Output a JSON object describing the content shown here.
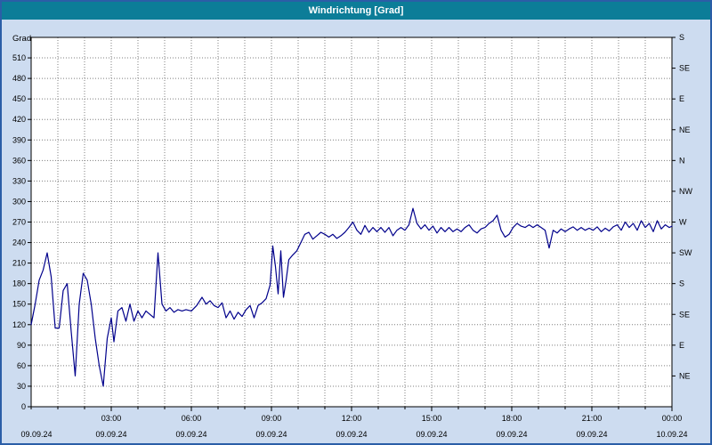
{
  "window": {
    "title": "Windrichtung [Grad]"
  },
  "colors": {
    "titlebar": "#0c7d98",
    "title_text": "#ffffff",
    "panel_bg": "#cddcf0",
    "plot_bg": "#ffffff",
    "grid": "#7f7f7f",
    "axis": "#000000",
    "line": "#00008b",
    "frame_border": "#2b5ea7"
  },
  "chart_data": {
    "type": "line",
    "title": "Windrichtung [Grad]",
    "ylabel_left": "Grad",
    "ylim": [
      0,
      540
    ],
    "xlim_hours": [
      0,
      24
    ],
    "grid": "dotted, vertical every hour, horizontal every 30 degrees",
    "legend_position": "none",
    "y_left_ticks": [
      0,
      30,
      60,
      90,
      120,
      150,
      180,
      210,
      240,
      270,
      300,
      330,
      360,
      390,
      420,
      450,
      480,
      510
    ],
    "y_right_ticks": [
      {
        "deg": 540,
        "label": "S"
      },
      {
        "deg": 495,
        "label": "SE"
      },
      {
        "deg": 450,
        "label": "E"
      },
      {
        "deg": 405,
        "label": "NE"
      },
      {
        "deg": 360,
        "label": "N"
      },
      {
        "deg": 315,
        "label": "NW"
      },
      {
        "deg": 270,
        "label": "W"
      },
      {
        "deg": 225,
        "label": "SW"
      },
      {
        "deg": 180,
        "label": "S"
      },
      {
        "deg": 135,
        "label": "SE"
      },
      {
        "deg": 90,
        "label": "E"
      },
      {
        "deg": 45,
        "label": "NE"
      }
    ],
    "x_ticks": [
      {
        "hour": 3,
        "label": "03:00"
      },
      {
        "hour": 6,
        "label": "06:00"
      },
      {
        "hour": 9,
        "label": "09:00"
      },
      {
        "hour": 12,
        "label": "12:00"
      },
      {
        "hour": 15,
        "label": "15:00"
      },
      {
        "hour": 18,
        "label": "18:00"
      },
      {
        "hour": 21,
        "label": "21:00"
      },
      {
        "hour": 24,
        "label": "00:00"
      }
    ],
    "x_dates": [
      {
        "hour": 0,
        "label": "09.09.24"
      },
      {
        "hour": 3,
        "label": "09.09.24"
      },
      {
        "hour": 6,
        "label": "09.09.24"
      },
      {
        "hour": 9,
        "label": "09.09.24"
      },
      {
        "hour": 12,
        "label": "09.09.24"
      },
      {
        "hour": 15,
        "label": "09.09.24"
      },
      {
        "hour": 18,
        "label": "09.09.24"
      },
      {
        "hour": 21,
        "label": "09.09.24"
      },
      {
        "hour": 24,
        "label": "10.09.24"
      }
    ],
    "series": [
      {
        "name": "Windrichtung",
        "unit": "Grad",
        "points": [
          [
            0.0,
            120
          ],
          [
            0.15,
            150
          ],
          [
            0.3,
            185
          ],
          [
            0.45,
            200
          ],
          [
            0.6,
            225
          ],
          [
            0.75,
            190
          ],
          [
            0.9,
            115
          ],
          [
            1.05,
            115
          ],
          [
            1.2,
            170
          ],
          [
            1.35,
            180
          ],
          [
            1.5,
            110
          ],
          [
            1.65,
            45
          ],
          [
            1.8,
            150
          ],
          [
            1.95,
            195
          ],
          [
            2.1,
            185
          ],
          [
            2.25,
            150
          ],
          [
            2.4,
            100
          ],
          [
            2.55,
            60
          ],
          [
            2.7,
            30
          ],
          [
            2.85,
            100
          ],
          [
            3.0,
            130
          ],
          [
            3.1,
            95
          ],
          [
            3.25,
            140
          ],
          [
            3.4,
            145
          ],
          [
            3.55,
            125
          ],
          [
            3.7,
            150
          ],
          [
            3.85,
            125
          ],
          [
            4.0,
            140
          ],
          [
            4.15,
            130
          ],
          [
            4.3,
            140
          ],
          [
            4.45,
            135
          ],
          [
            4.6,
            130
          ],
          [
            4.75,
            225
          ],
          [
            4.9,
            150
          ],
          [
            5.05,
            140
          ],
          [
            5.2,
            145
          ],
          [
            5.35,
            138
          ],
          [
            5.5,
            142
          ],
          [
            5.65,
            140
          ],
          [
            5.8,
            142
          ],
          [
            6.0,
            140
          ],
          [
            6.2,
            148
          ],
          [
            6.4,
            160
          ],
          [
            6.55,
            150
          ],
          [
            6.7,
            155
          ],
          [
            6.85,
            148
          ],
          [
            7.0,
            145
          ],
          [
            7.15,
            152
          ],
          [
            7.3,
            130
          ],
          [
            7.45,
            140
          ],
          [
            7.6,
            128
          ],
          [
            7.75,
            138
          ],
          [
            7.9,
            132
          ],
          [
            8.05,
            142
          ],
          [
            8.2,
            148
          ],
          [
            8.35,
            130
          ],
          [
            8.5,
            148
          ],
          [
            8.65,
            152
          ],
          [
            8.8,
            158
          ],
          [
            8.95,
            178
          ],
          [
            9.05,
            235
          ],
          [
            9.15,
            205
          ],
          [
            9.25,
            165
          ],
          [
            9.35,
            228
          ],
          [
            9.45,
            160
          ],
          [
            9.55,
            185
          ],
          [
            9.65,
            215
          ],
          [
            9.8,
            222
          ],
          [
            9.95,
            228
          ],
          [
            10.1,
            240
          ],
          [
            10.25,
            252
          ],
          [
            10.4,
            255
          ],
          [
            10.55,
            245
          ],
          [
            10.7,
            250
          ],
          [
            10.85,
            255
          ],
          [
            11.0,
            252
          ],
          [
            11.15,
            248
          ],
          [
            11.3,
            252
          ],
          [
            11.45,
            246
          ],
          [
            11.6,
            250
          ],
          [
            11.75,
            255
          ],
          [
            11.9,
            262
          ],
          [
            12.05,
            270
          ],
          [
            12.2,
            258
          ],
          [
            12.35,
            252
          ],
          [
            12.5,
            265
          ],
          [
            12.65,
            255
          ],
          [
            12.8,
            262
          ],
          [
            12.95,
            256
          ],
          [
            13.1,
            262
          ],
          [
            13.25,
            255
          ],
          [
            13.4,
            262
          ],
          [
            13.55,
            250
          ],
          [
            13.7,
            258
          ],
          [
            13.85,
            262
          ],
          [
            14.0,
            258
          ],
          [
            14.15,
            266
          ],
          [
            14.3,
            290
          ],
          [
            14.45,
            268
          ],
          [
            14.6,
            260
          ],
          [
            14.75,
            266
          ],
          [
            14.9,
            258
          ],
          [
            15.05,
            264
          ],
          [
            15.2,
            254
          ],
          [
            15.35,
            262
          ],
          [
            15.5,
            256
          ],
          [
            15.65,
            262
          ],
          [
            15.8,
            256
          ],
          [
            15.95,
            260
          ],
          [
            16.1,
            256
          ],
          [
            16.25,
            262
          ],
          [
            16.4,
            266
          ],
          [
            16.55,
            258
          ],
          [
            16.7,
            254
          ],
          [
            16.85,
            260
          ],
          [
            17.0,
            262
          ],
          [
            17.15,
            268
          ],
          [
            17.3,
            272
          ],
          [
            17.45,
            280
          ],
          [
            17.6,
            258
          ],
          [
            17.75,
            248
          ],
          [
            17.9,
            252
          ],
          [
            18.05,
            262
          ],
          [
            18.2,
            268
          ],
          [
            18.35,
            264
          ],
          [
            18.5,
            262
          ],
          [
            18.65,
            266
          ],
          [
            18.8,
            262
          ],
          [
            18.95,
            266
          ],
          [
            19.1,
            262
          ],
          [
            19.25,
            258
          ],
          [
            19.4,
            232
          ],
          [
            19.55,
            258
          ],
          [
            19.7,
            254
          ],
          [
            19.85,
            260
          ],
          [
            20.0,
            256
          ],
          [
            20.15,
            260
          ],
          [
            20.3,
            263
          ],
          [
            20.45,
            258
          ],
          [
            20.6,
            262
          ],
          [
            20.75,
            258
          ],
          [
            20.9,
            261
          ],
          [
            21.05,
            258
          ],
          [
            21.2,
            263
          ],
          [
            21.35,
            256
          ],
          [
            21.5,
            261
          ],
          [
            21.65,
            257
          ],
          [
            21.8,
            263
          ],
          [
            21.95,
            266
          ],
          [
            22.1,
            258
          ],
          [
            22.25,
            270
          ],
          [
            22.4,
            262
          ],
          [
            22.55,
            268
          ],
          [
            22.7,
            258
          ],
          [
            22.85,
            272
          ],
          [
            23.0,
            262
          ],
          [
            23.15,
            268
          ],
          [
            23.3,
            256
          ],
          [
            23.45,
            272
          ],
          [
            23.6,
            260
          ],
          [
            23.75,
            266
          ],
          [
            23.9,
            262
          ],
          [
            24.0,
            264
          ]
        ]
      }
    ]
  }
}
